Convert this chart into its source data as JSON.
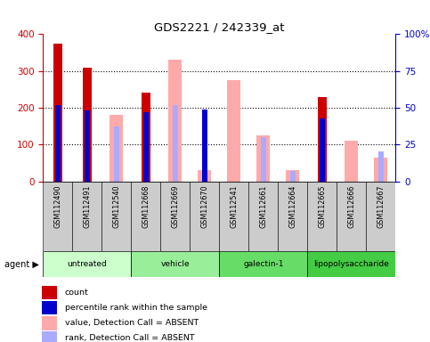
{
  "title": "GDS2221 / 242339_at",
  "samples": [
    "GSM112490",
    "GSM112491",
    "GSM112540",
    "GSM112668",
    "GSM112669",
    "GSM112670",
    "GSM112541",
    "GSM112661",
    "GSM112664",
    "GSM112665",
    "GSM112666",
    "GSM112667"
  ],
  "groups": [
    {
      "name": "untreated",
      "color": "#ccffcc",
      "samples": [
        0,
        1,
        2
      ]
    },
    {
      "name": "vehicle",
      "color": "#99ee99",
      "samples": [
        3,
        4,
        5
      ]
    },
    {
      "name": "galectin-1",
      "color": "#66dd66",
      "samples": [
        6,
        7,
        8
      ]
    },
    {
      "name": "lipopolysaccharide",
      "color": "#44cc44",
      "samples": [
        9,
        10,
        11
      ]
    }
  ],
  "count": [
    375,
    310,
    null,
    240,
    null,
    null,
    null,
    null,
    null,
    230,
    null,
    null
  ],
  "percentile_rank_pct": [
    52,
    48,
    null,
    47,
    null,
    49,
    null,
    null,
    null,
    43,
    null,
    null
  ],
  "value_absent": [
    null,
    null,
    180,
    null,
    330,
    30,
    275,
    125,
    30,
    null,
    110,
    65
  ],
  "rank_absent_pct": [
    null,
    null,
    37,
    null,
    52,
    17,
    null,
    30,
    7,
    null,
    null,
    20
  ],
  "ylim_left": [
    0,
    400
  ],
  "ylim_right": [
    0,
    100
  ],
  "left_yticks": [
    0,
    100,
    200,
    300,
    400
  ],
  "right_yticks": [
    0,
    25,
    50,
    75,
    100
  ],
  "right_yticklabels": [
    "0",
    "25",
    "50",
    "75",
    "100%"
  ],
  "count_color": "#cc0000",
  "percentile_color": "#0000cc",
  "value_absent_color": "#ffaaaa",
  "rank_absent_color": "#aaaaff",
  "sample_bg_color": "#cccccc",
  "left_axis_color": "#cc0000",
  "right_axis_color": "#0000cc",
  "grid_yticks": [
    100,
    200,
    300
  ]
}
